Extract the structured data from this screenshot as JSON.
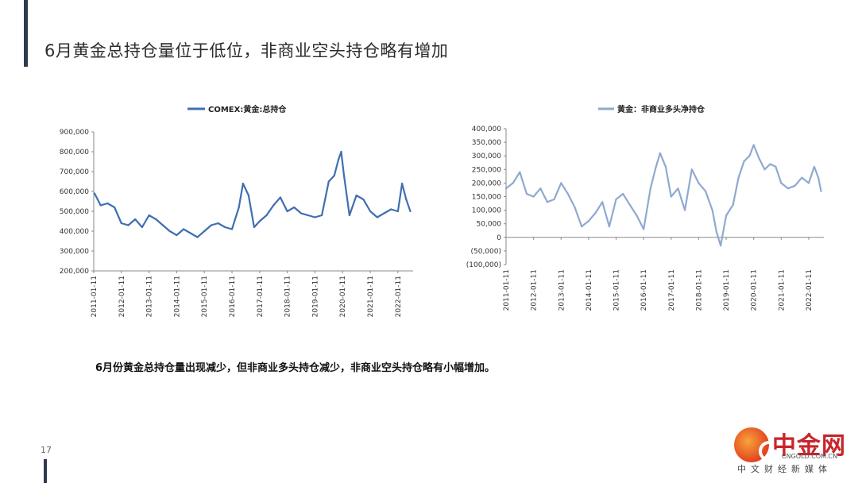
{
  "slide": {
    "title": "6月黄金总持仓量位于低位，非商业空头持仓略有增加",
    "summary": "6月份黄金总持仓量出现减少，但非商业多头持仓减少，非商业空头持仓略有小幅增加。",
    "page_number": "17"
  },
  "logo": {
    "name": "中金网",
    "domain": "CNGOLD.COM.CN",
    "tagline": "中文财经新媒体"
  },
  "colors": {
    "series_left": "#3f6fb0",
    "series_right": "#8fa9cf",
    "negative_label": "#cc0000",
    "title_bar": "#2f3a4f",
    "logo_red": "#c9242b"
  },
  "chart_data": [
    {
      "type": "line",
      "legend": "COMEX:黄金:总持仓",
      "legend_position": "top",
      "grid": false,
      "x_range": [
        "2011-01-11",
        "2022-06"
      ],
      "x_tick_labels": [
        "2011-01-11",
        "2012-01-11",
        "2013-01-11",
        "2014-01-11",
        "2015-01-11",
        "2016-01-11",
        "2017-01-11",
        "2018-01-11",
        "2019-01-11",
        "2020-01-11",
        "2021-01-11",
        "2022-01-11"
      ],
      "y_tick_labels": [
        "200,000",
        "300,000",
        "400,000",
        "500,000",
        "600,000",
        "700,000",
        "800,000",
        "900,000"
      ],
      "ylim": [
        200000,
        900000
      ],
      "series": [
        {
          "name": "COMEX:黄金:总持仓",
          "x": [
            2011.03,
            2011.25,
            2011.5,
            2011.75,
            2012.0,
            2012.25,
            2012.5,
            2012.75,
            2013.0,
            2013.25,
            2013.5,
            2013.75,
            2014.0,
            2014.25,
            2014.5,
            2014.75,
            2015.0,
            2015.25,
            2015.5,
            2015.75,
            2016.0,
            2016.25,
            2016.4,
            2016.6,
            2016.8,
            2017.0,
            2017.25,
            2017.5,
            2017.75,
            2018.0,
            2018.25,
            2018.5,
            2018.75,
            2019.0,
            2019.25,
            2019.5,
            2019.7,
            2019.85,
            2019.95,
            2020.05,
            2020.25,
            2020.5,
            2020.75,
            2021.0,
            2021.25,
            2021.5,
            2021.75,
            2022.0,
            2022.15,
            2022.3,
            2022.45
          ],
          "y": [
            590000,
            530000,
            540000,
            520000,
            440000,
            430000,
            460000,
            420000,
            480000,
            460000,
            430000,
            400000,
            380000,
            410000,
            390000,
            370000,
            400000,
            430000,
            440000,
            420000,
            410000,
            520000,
            640000,
            580000,
            420000,
            450000,
            480000,
            530000,
            570000,
            500000,
            520000,
            490000,
            480000,
            470000,
            480000,
            650000,
            680000,
            760000,
            800000,
            680000,
            480000,
            580000,
            560000,
            500000,
            470000,
            490000,
            510000,
            500000,
            640000,
            560000,
            500000
          ]
        }
      ]
    },
    {
      "type": "line",
      "legend": "黄金：非商业多头净持仓",
      "legend_position": "top",
      "grid": false,
      "x_range": [
        "2011-01-11",
        "2022-06"
      ],
      "x_tick_labels": [
        "2011-01-11",
        "2012-01-11",
        "2013-01-11",
        "2014-01-11",
        "2015-01-11",
        "2016-01-11",
        "2017-01-11",
        "2018-01-11",
        "2019-01-11",
        "2020-01-11",
        "2021-01-11",
        "2022-01-11"
      ],
      "y_tick_labels": [
        "(100,000)",
        "(50,000)",
        "0",
        "50,000",
        "100,000",
        "150,000",
        "200,000",
        "250,000",
        "300,000",
        "350,000",
        "400,000"
      ],
      "ylim": [
        -100000,
        400000
      ],
      "series": [
        {
          "name": "黄金：非商业多头净持仓",
          "x": [
            2011.0,
            2011.25,
            2011.5,
            2011.75,
            2012.0,
            2012.25,
            2012.5,
            2012.75,
            2013.0,
            2013.25,
            2013.5,
            2013.75,
            2014.0,
            2014.25,
            2014.5,
            2014.75,
            2015.0,
            2015.25,
            2015.5,
            2015.75,
            2016.0,
            2016.25,
            2016.45,
            2016.6,
            2016.8,
            2017.0,
            2017.25,
            2017.5,
            2017.75,
            2018.0,
            2018.25,
            2018.5,
            2018.65,
            2018.8,
            2019.0,
            2019.25,
            2019.45,
            2019.65,
            2019.85,
            2020.0,
            2020.2,
            2020.4,
            2020.6,
            2020.8,
            2021.0,
            2021.25,
            2021.5,
            2021.75,
            2022.0,
            2022.2,
            2022.35,
            2022.45
          ],
          "y": [
            180000,
            200000,
            240000,
            160000,
            150000,
            180000,
            130000,
            140000,
            200000,
            160000,
            110000,
            40000,
            60000,
            90000,
            130000,
            40000,
            140000,
            160000,
            120000,
            80000,
            30000,
            180000,
            260000,
            310000,
            260000,
            150000,
            180000,
            100000,
            250000,
            200000,
            170000,
            100000,
            20000,
            -30000,
            80000,
            120000,
            220000,
            280000,
            300000,
            340000,
            290000,
            250000,
            270000,
            260000,
            200000,
            180000,
            190000,
            220000,
            200000,
            260000,
            220000,
            170000
          ]
        }
      ]
    }
  ]
}
